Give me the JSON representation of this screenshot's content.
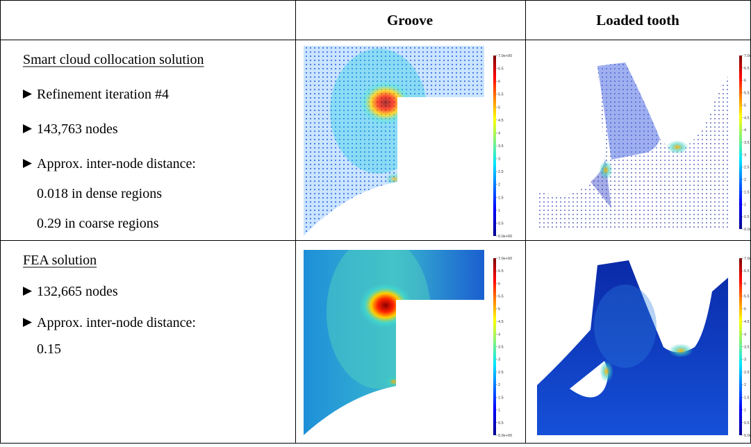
{
  "table": {
    "columns": [
      "Groove",
      "Loaded tooth"
    ],
    "rows": [
      {
        "heading": "Smart cloud collocation solution",
        "items": [
          "Refinement iteration #4",
          "143,763 nodes",
          "Approx. inter-node distance:"
        ],
        "notes": [
          "0.018 in dense regions",
          "0.29 in coarse regions"
        ]
      },
      {
        "heading": "FEA solution",
        "items": [
          "132,665 nodes",
          "Approx. inter-node distance:"
        ],
        "notes": [
          "0.15"
        ]
      }
    ],
    "colorbar_labels": [
      "7.0e+00",
      "6.5",
      "6",
      "5.5",
      "5",
      "4.5",
      "4",
      "3.5",
      "3",
      "2.5",
      "2",
      "1.5",
      "1",
      "0.5",
      "0.0e+00"
    ]
  }
}
